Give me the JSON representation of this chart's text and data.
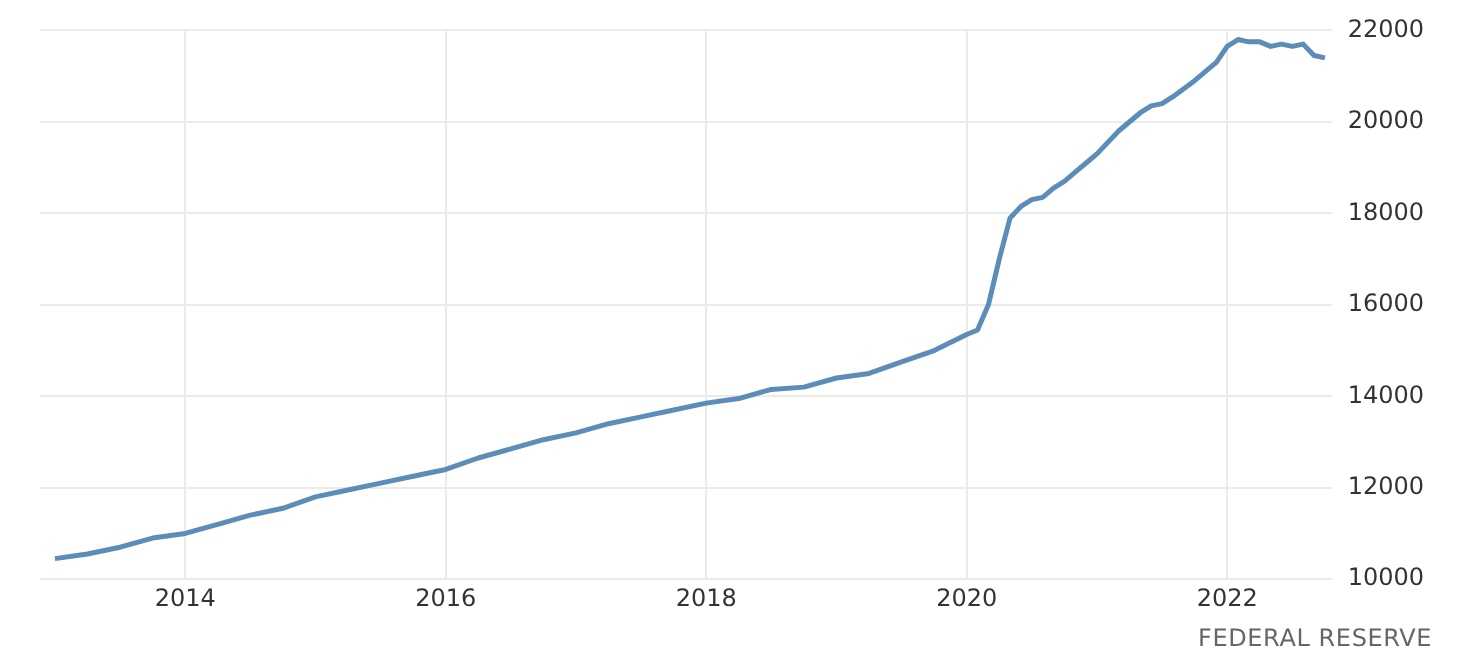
{
  "chart_data": {
    "type": "line",
    "x": [
      "2013-01",
      "2013-04",
      "2013-07",
      "2013-10",
      "2014-01",
      "2014-04",
      "2014-07",
      "2014-10",
      "2015-01",
      "2015-04",
      "2015-07",
      "2015-10",
      "2016-01",
      "2016-04",
      "2016-07",
      "2016-10",
      "2017-01",
      "2017-04",
      "2017-07",
      "2017-10",
      "2018-01",
      "2018-04",
      "2018-07",
      "2018-10",
      "2019-01",
      "2019-04",
      "2019-07",
      "2019-10",
      "2020-01",
      "2020-02",
      "2020-03",
      "2020-04",
      "2020-05",
      "2020-06",
      "2020-07",
      "2020-08",
      "2020-09",
      "2020-10",
      "2020-11",
      "2020-12",
      "2021-01",
      "2021-03",
      "2021-05",
      "2021-06",
      "2021-07",
      "2021-08",
      "2021-10",
      "2021-12",
      "2022-01",
      "2022-02",
      "2022-03",
      "2022-04",
      "2022-05",
      "2022-06",
      "2022-07",
      "2022-08",
      "2022-09",
      "2022-10"
    ],
    "series": [
      {
        "color": "#5b8db8",
        "values": [
          10450,
          10550,
          10700,
          10900,
          11000,
          11200,
          11400,
          11550,
          11800,
          11950,
          12100,
          12250,
          12400,
          12650,
          12850,
          13050,
          13200,
          13400,
          13550,
          13700,
          13850,
          13950,
          14150,
          14200,
          14400,
          14500,
          14750,
          15000,
          15350,
          15450,
          16000,
          17000,
          17900,
          18150,
          18300,
          18350,
          18550,
          18700,
          18900,
          19100,
          19300,
          19800,
          20200,
          20350,
          20400,
          20550,
          20900,
          21300,
          21650,
          21800,
          21750,
          21750,
          21650,
          21700,
          21650,
          21700,
          21450,
          21400
        ]
      }
    ],
    "xlim": [
      "2012-11-20",
      "2022-10-20"
    ],
    "xticks": [
      "2014",
      "2016",
      "2018",
      "2020",
      "2022"
    ],
    "ylim": [
      10000,
      22000
    ],
    "yticks": [
      10000,
      12000,
      14000,
      16000,
      18000,
      20000,
      22000
    ],
    "grid": true,
    "legend": false,
    "marker": "none",
    "line_style": "solid",
    "annotations": [
      "FEDERAL RESERVE"
    ]
  }
}
